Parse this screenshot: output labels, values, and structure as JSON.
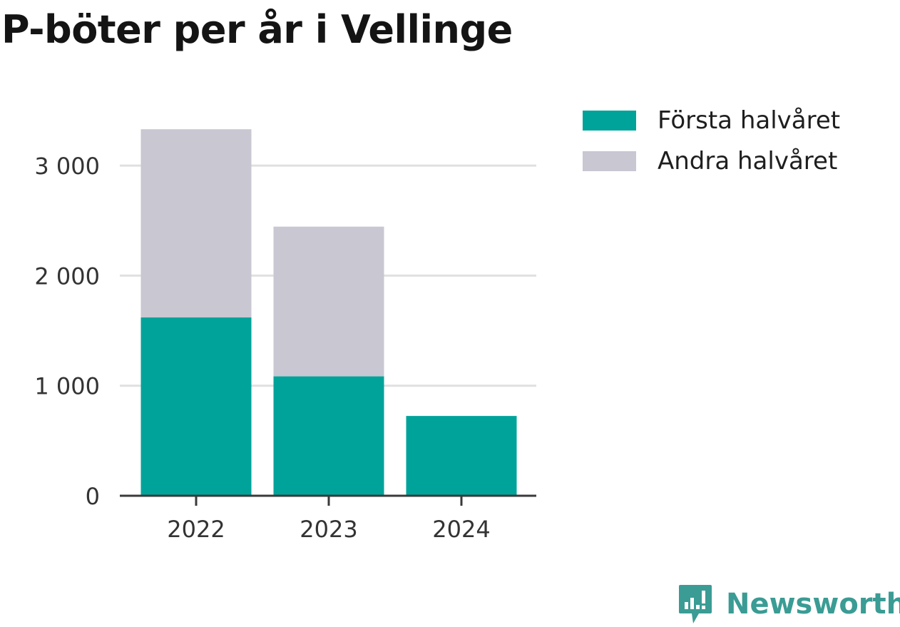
{
  "title": "P-böter per år i Vellinge",
  "brand": {
    "name": "Newsworthy",
    "color": "#3a9c94",
    "icon": "newsworthy-logo-icon"
  },
  "colors": {
    "first_half": "#00a39a",
    "second_half": "#c8c7d2",
    "grid": "#e0e0e0",
    "axis": "#3a3a3a"
  },
  "chart_data": {
    "type": "bar",
    "stacked": true,
    "title": "P-böter per år i Vellinge",
    "xlabel": "",
    "ylabel": "",
    "categories": [
      "2022",
      "2023",
      "2024"
    ],
    "series": [
      {
        "name": "Första halvåret",
        "values": [
          1620,
          1085,
          725
        ],
        "color": "#00a39a"
      },
      {
        "name": "Andra halvåret",
        "values": [
          1710,
          1360,
          0
        ],
        "color": "#c8c7d2"
      }
    ],
    "ylim": [
      0,
      3400
    ],
    "yticks": [
      0,
      1000,
      2000,
      3000
    ],
    "ytick_labels": [
      "0",
      "1 000",
      "2 000",
      "3 000"
    ],
    "grid": true,
    "legend": "top-right"
  }
}
